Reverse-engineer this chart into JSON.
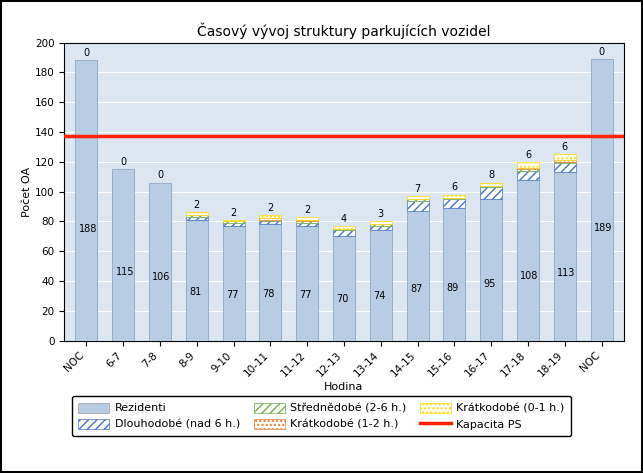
{
  "title": "Časový vývoj struktury parkujících vozidel",
  "xlabel": "Hodina",
  "ylabel": "Počet OA",
  "categories": [
    "NOC",
    "6-7",
    "7-8",
    "8-9",
    "9-10",
    "10-11",
    "11-12",
    "12-13",
    "13-14",
    "14-15",
    "15-16",
    "16-17",
    "17-18",
    "18-19",
    "NOC"
  ],
  "rezidenti": [
    188,
    115,
    106,
    81,
    77,
    78,
    77,
    70,
    74,
    87,
    89,
    95,
    108,
    113,
    189
  ],
  "dlouhodobe": [
    0,
    0,
    0,
    2,
    2,
    2,
    2,
    4,
    3,
    7,
    6,
    8,
    6,
    6,
    0
  ],
  "strednedobe": [
    0,
    0,
    0,
    1,
    1,
    1,
    1,
    1,
    1,
    1,
    1,
    1,
    1,
    1,
    0
  ],
  "kratkodobe_1_2": [
    0,
    0,
    0,
    0,
    0,
    1,
    1,
    0,
    0,
    0,
    0,
    0,
    1,
    1,
    0
  ],
  "kratkodobe_0_1": [
    0,
    0,
    0,
    2,
    1,
    2,
    2,
    2,
    2,
    2,
    2,
    2,
    4,
    4,
    0
  ],
  "top_labels": [
    0,
    0,
    0,
    2,
    2,
    2,
    2,
    4,
    3,
    7,
    6,
    8,
    6,
    6,
    0
  ],
  "kapacita": 137,
  "bar_color": "#b8cce4",
  "bar_edgecolor": "#7f9fbf",
  "dlouhodobe_facecolor": "#ffffff",
  "dlouhodobe_hatchcolor": "#4472c4",
  "strednedobe_facecolor": "#ffffff",
  "strednedobe_hatchcolor": "#70ad47",
  "kratkodobe_1_2_facecolor": "#ffffff",
  "kratkodobe_1_2_hatchcolor": "#ed7d31",
  "kratkodobe_0_1_facecolor": "#ffffff",
  "kratkodobe_0_1_hatchcolor": "#ffd900",
  "kapacita_color": "#ff2200",
  "ylim": [
    0,
    200
  ],
  "yticks": [
    0,
    20,
    40,
    60,
    80,
    100,
    120,
    140,
    160,
    180,
    200
  ],
  "background_color": "#ffffff",
  "plot_bg_color": "#dce6f1",
  "grid_color": "#ffffff",
  "outer_border_color": "#000000",
  "title_fontsize": 10,
  "label_fontsize": 8,
  "tick_fontsize": 7.5,
  "annot_fontsize": 7
}
